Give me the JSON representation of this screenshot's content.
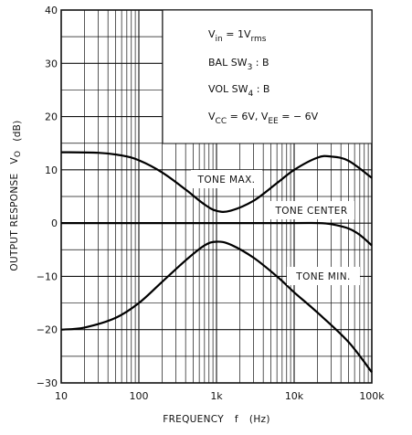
{
  "chart_data": {
    "type": "line",
    "x_scale": "log",
    "xlim": [
      10,
      100000
    ],
    "ylim": [
      -30,
      40
    ],
    "xticks": [
      "10",
      "100",
      "1k",
      "10k",
      "100k"
    ],
    "yticks": [
      "40",
      "30",
      "20",
      "10",
      "0",
      "−10",
      "−20",
      "−30"
    ],
    "xlabel": {
      "main": "FREQUENCY",
      "symbol": "f",
      "unit": "(Hz)"
    },
    "ylabel": {
      "main": "OUTPUT RESPONSE",
      "symbol": "VO",
      "unit": "(dB)"
    },
    "conditions": [
      {
        "main": "V",
        "sub": "in",
        "rest": " = 1V",
        "sub2": "rms"
      },
      {
        "main": "BAL SW",
        "sub": "3",
        "rest": " : B",
        "sub2": ""
      },
      {
        "main": "VOL SW",
        "sub": "4",
        "rest": " : B",
        "sub2": ""
      },
      {
        "main": "V",
        "sub": "CC",
        "rest": " = 6V,  V",
        "sub2": "EE",
        "rest2": " = − 6V"
      }
    ],
    "series": [
      {
        "name": "TONE MAX.",
        "x": [
          10,
          30,
          60,
          100,
          200,
          400,
          700,
          1000,
          1500,
          3000,
          6000,
          10000,
          20000,
          30000,
          50000,
          100000
        ],
        "values": [
          13.3,
          13.2,
          12.7,
          11.8,
          9.5,
          6.3,
          3.5,
          2.3,
          2.3,
          4.2,
          7.5,
          10.0,
          12.3,
          12.5,
          11.7,
          8.5
        ]
      },
      {
        "name": "TONE CENTER",
        "x": [
          10,
          100,
          1000,
          10000,
          20000,
          30000,
          50000,
          70000,
          100000
        ],
        "values": [
          0,
          0,
          0,
          0,
          0,
          -0.2,
          -1.0,
          -2.2,
          -4.2
        ]
      },
      {
        "name": "TONE MIN.",
        "x": [
          10,
          20,
          50,
          100,
          200,
          400,
          700,
          1000,
          1500,
          3000,
          6000,
          10000,
          20000,
          50000,
          100000
        ],
        "values": [
          -20.0,
          -19.6,
          -17.8,
          -15.0,
          -11.0,
          -7.0,
          -4.2,
          -3.5,
          -4.0,
          -6.5,
          -10.0,
          -13.0,
          -16.8,
          -22.3,
          -28.0
        ]
      }
    ],
    "grid": true,
    "legend": "inline labels on curves"
  }
}
